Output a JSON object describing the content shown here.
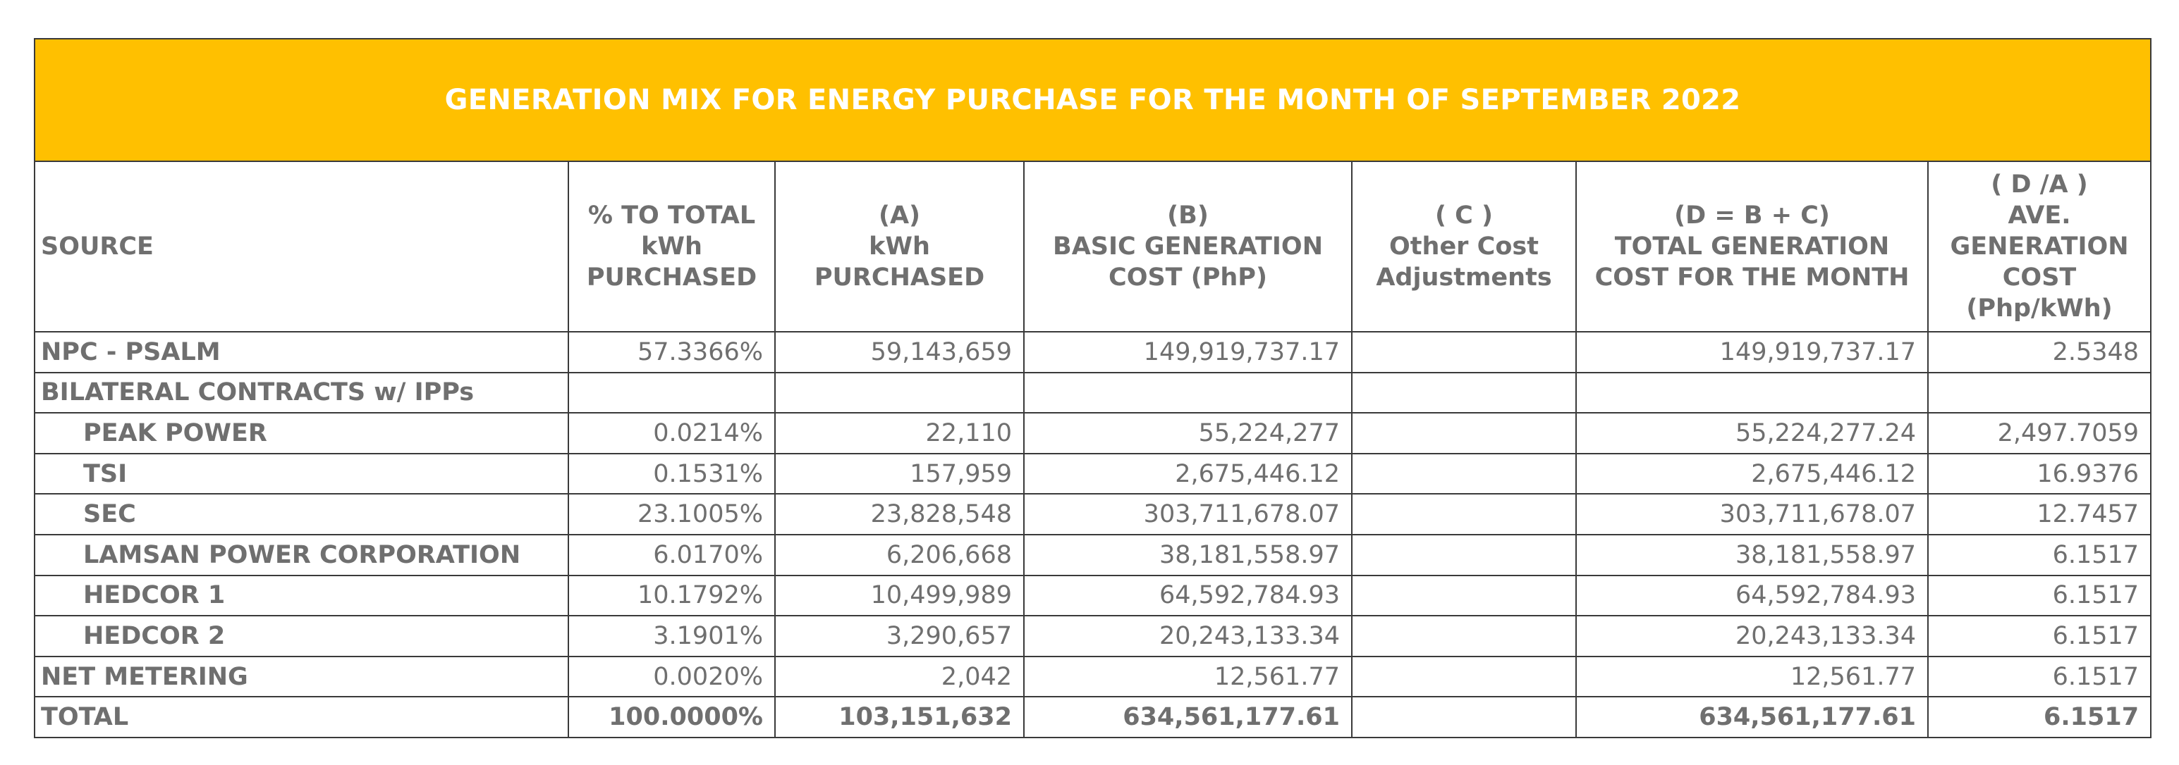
{
  "title": "GENERATION MIX FOR ENERGY PURCHASE FOR THE MONTH OF SEPTEMBER 2022",
  "colors": {
    "title_background": "#ffc000",
    "title_text": "#ffffff",
    "body_text": "#6f6f6f",
    "border": "#3a3a3a"
  },
  "headers": [
    {
      "key": "source",
      "lines": [
        "SOURCE"
      ]
    },
    {
      "key": "percent",
      "lines": [
        "% TO TOTAL",
        "kWh",
        "PURCHASED"
      ]
    },
    {
      "key": "kwh",
      "lines": [
        "(A)",
        "kWh",
        "PURCHASED"
      ]
    },
    {
      "key": "basic",
      "lines": [
        "(B)",
        "BASIC GENERATION",
        "COST (PhP)"
      ]
    },
    {
      "key": "other",
      "lines": [
        "( C )",
        "Other Cost",
        "Adjustments"
      ]
    },
    {
      "key": "total_cost",
      "lines": [
        "(D = B + C)",
        "TOTAL GENERATION",
        "COST FOR THE MONTH"
      ]
    },
    {
      "key": "ave",
      "lines": [
        "( D /A )",
        "AVE.",
        "GENERATION",
        "COST",
        "(Php/kWh)"
      ]
    }
  ],
  "rows": [
    {
      "source": "NPC - PSALM",
      "indent": false,
      "percent": "57.3366%",
      "kwh": "59,143,659",
      "basic": "149,919,737.17",
      "other": "",
      "total_cost": "149,919,737.17",
      "ave": "2.5348"
    },
    {
      "source": "BILATERAL CONTRACTS w/ IPPs",
      "indent": false,
      "percent": "",
      "kwh": "",
      "basic": "",
      "other": "",
      "total_cost": "",
      "ave": ""
    },
    {
      "source": "PEAK POWER",
      "indent": true,
      "percent": "0.0214%",
      "kwh": "22,110",
      "basic": "55,224,277",
      "other": "",
      "total_cost": "55,224,277.24",
      "ave": "2,497.7059"
    },
    {
      "source": "TSI",
      "indent": true,
      "percent": "0.1531%",
      "kwh": "157,959",
      "basic": "2,675,446.12",
      "other": "",
      "total_cost": "2,675,446.12",
      "ave": "16.9376"
    },
    {
      "source": "SEC",
      "indent": true,
      "percent": "23.1005%",
      "kwh": "23,828,548",
      "basic": "303,711,678.07",
      "other": "",
      "total_cost": "303,711,678.07",
      "ave": "12.7457"
    },
    {
      "source": "LAMSAN POWER CORPORATION",
      "indent": true,
      "percent": "6.0170%",
      "kwh": "6,206,668",
      "basic": "38,181,558.97",
      "other": "",
      "total_cost": "38,181,558.97",
      "ave": "6.1517"
    },
    {
      "source": "HEDCOR 1",
      "indent": true,
      "percent": "10.1792%",
      "kwh": "10,499,989",
      "basic": "64,592,784.93",
      "other": "",
      "total_cost": "64,592,784.93",
      "ave": "6.1517"
    },
    {
      "source": "HEDCOR 2",
      "indent": true,
      "percent": "3.1901%",
      "kwh": "3,290,657",
      "basic": "20,243,133.34",
      "other": "",
      "total_cost": "20,243,133.34",
      "ave": "6.1517"
    },
    {
      "source": "NET METERING",
      "indent": false,
      "percent": "0.0020%",
      "kwh": "2,042",
      "basic": "12,561.77",
      "other": "",
      "total_cost": "12,561.77",
      "ave": "6.1517"
    },
    {
      "source": "TOTAL",
      "indent": false,
      "total": true,
      "percent": "100.0000%",
      "kwh": "103,151,632",
      "basic": "634,561,177.61",
      "other": "",
      "total_cost": "634,561,177.61",
      "ave": "6.1517"
    }
  ]
}
